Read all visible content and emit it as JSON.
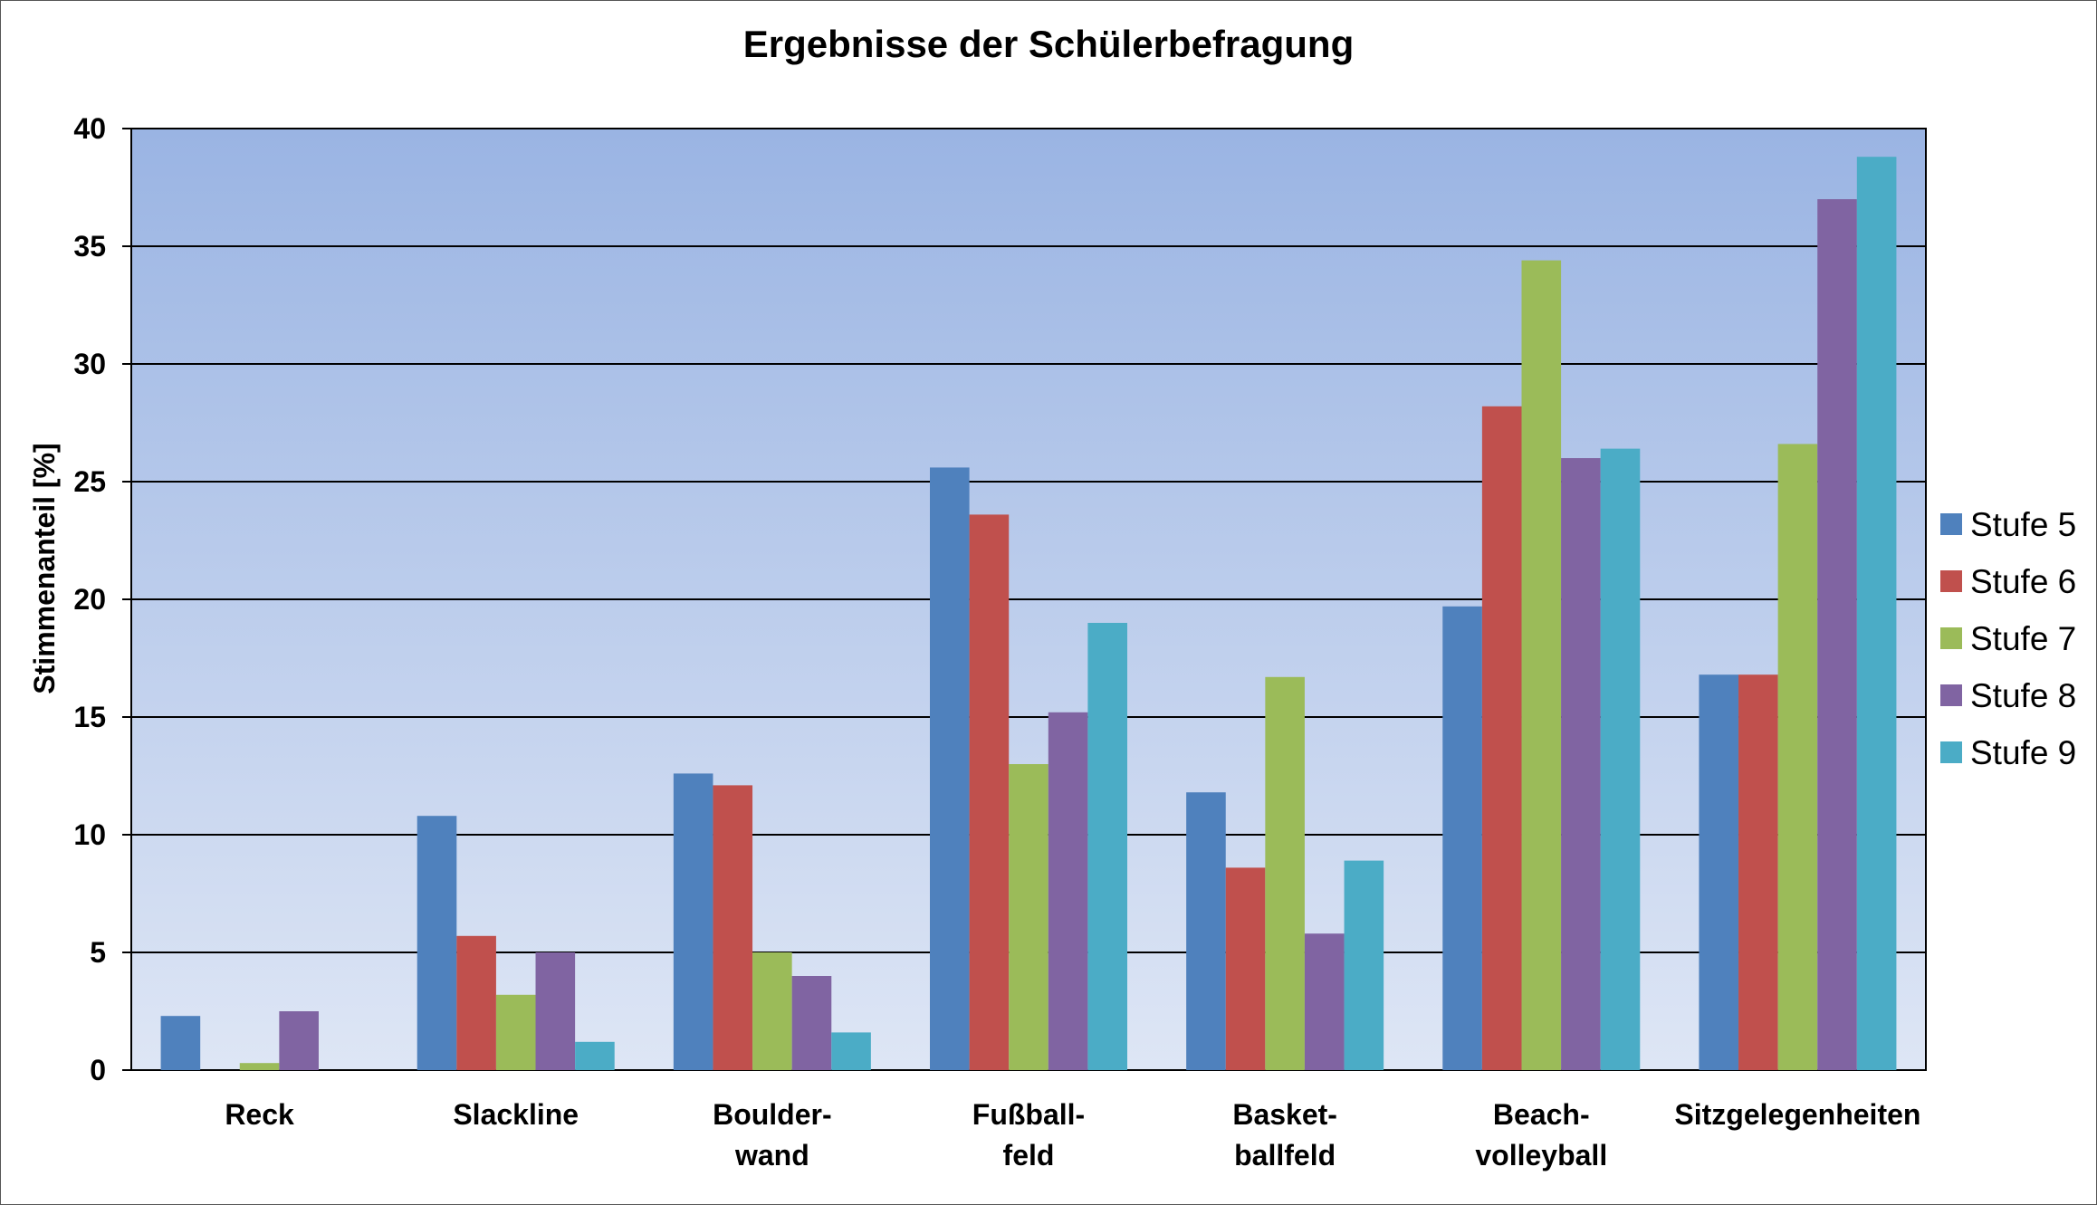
{
  "chart_data": {
    "type": "bar",
    "title": "Ergebnisse der Schülerbefragung",
    "xlabel": "",
    "ylabel": "Stimmenanteil [%]",
    "ylim": [
      0,
      40
    ],
    "yticks": [
      0,
      5,
      10,
      15,
      20,
      25,
      30,
      35,
      40
    ],
    "grid": true,
    "legend_position": "right",
    "categories": [
      [
        "Reck"
      ],
      [
        "Slackline"
      ],
      [
        "Boulder-",
        "wand"
      ],
      [
        "Fußball-",
        "feld"
      ],
      [
        "Basket-",
        "ballfeld"
      ],
      [
        "Beach-",
        "volleyball"
      ],
      [
        "Sitzgelegenheiten"
      ]
    ],
    "series": [
      {
        "name": "Stufe 5",
        "color": "#4F81BD",
        "values": [
          2.3,
          10.8,
          12.6,
          25.6,
          11.8,
          19.7,
          16.8
        ]
      },
      {
        "name": "Stufe 6",
        "color": "#C0504D",
        "values": [
          0,
          5.7,
          12.1,
          23.6,
          8.6,
          28.2,
          16.8
        ]
      },
      {
        "name": "Stufe 7",
        "color": "#9BBB59",
        "values": [
          0.3,
          3.2,
          5.0,
          13.0,
          16.7,
          34.4,
          26.6
        ]
      },
      {
        "name": "Stufe 8",
        "color": "#8064A2",
        "values": [
          2.5,
          5.0,
          4.0,
          15.2,
          5.8,
          26.0,
          37.0
        ]
      },
      {
        "name": "Stufe 9",
        "color": "#4BACC6",
        "values": [
          0,
          1.2,
          1.6,
          19.0,
          8.9,
          26.4,
          38.8
        ]
      }
    ]
  }
}
